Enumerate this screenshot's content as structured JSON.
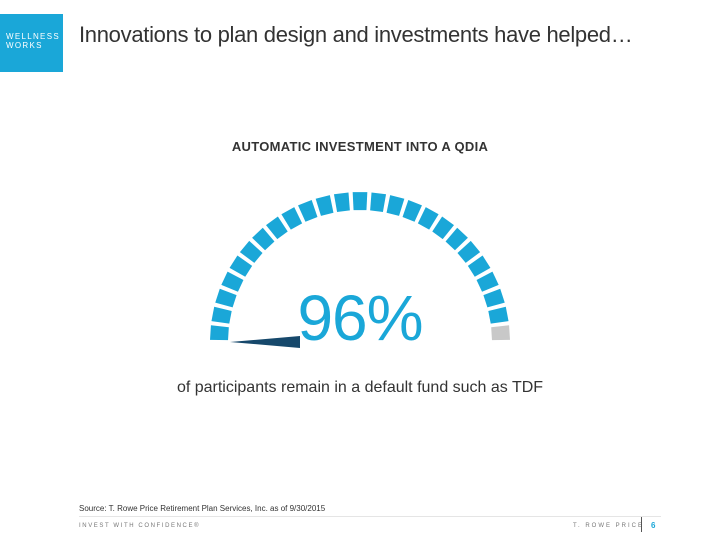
{
  "brand": {
    "line1": "WELLNESS",
    "line2": "WORKS"
  },
  "slide": {
    "title": "Innovations to plan design and investments have helped…"
  },
  "chart_data": {
    "type": "gauge",
    "title": "AUTOMATIC INVESTMENT INTO A QDIA",
    "value": 96,
    "max": 100,
    "value_label": "96%",
    "caption": "of participants remain in a default fund such as TDF",
    "colors": {
      "filled": "#1aa7d8",
      "empty": "#c8c8c8",
      "pointer": "#16486b"
    }
  },
  "source": "Source: T. Rowe Price Retirement Plan Services, Inc. as of 9/30/2015",
  "footer": {
    "tagline": "INVEST WITH CONFIDENCE®",
    "company": "T. ROWE PRICE",
    "page_number": "6"
  }
}
